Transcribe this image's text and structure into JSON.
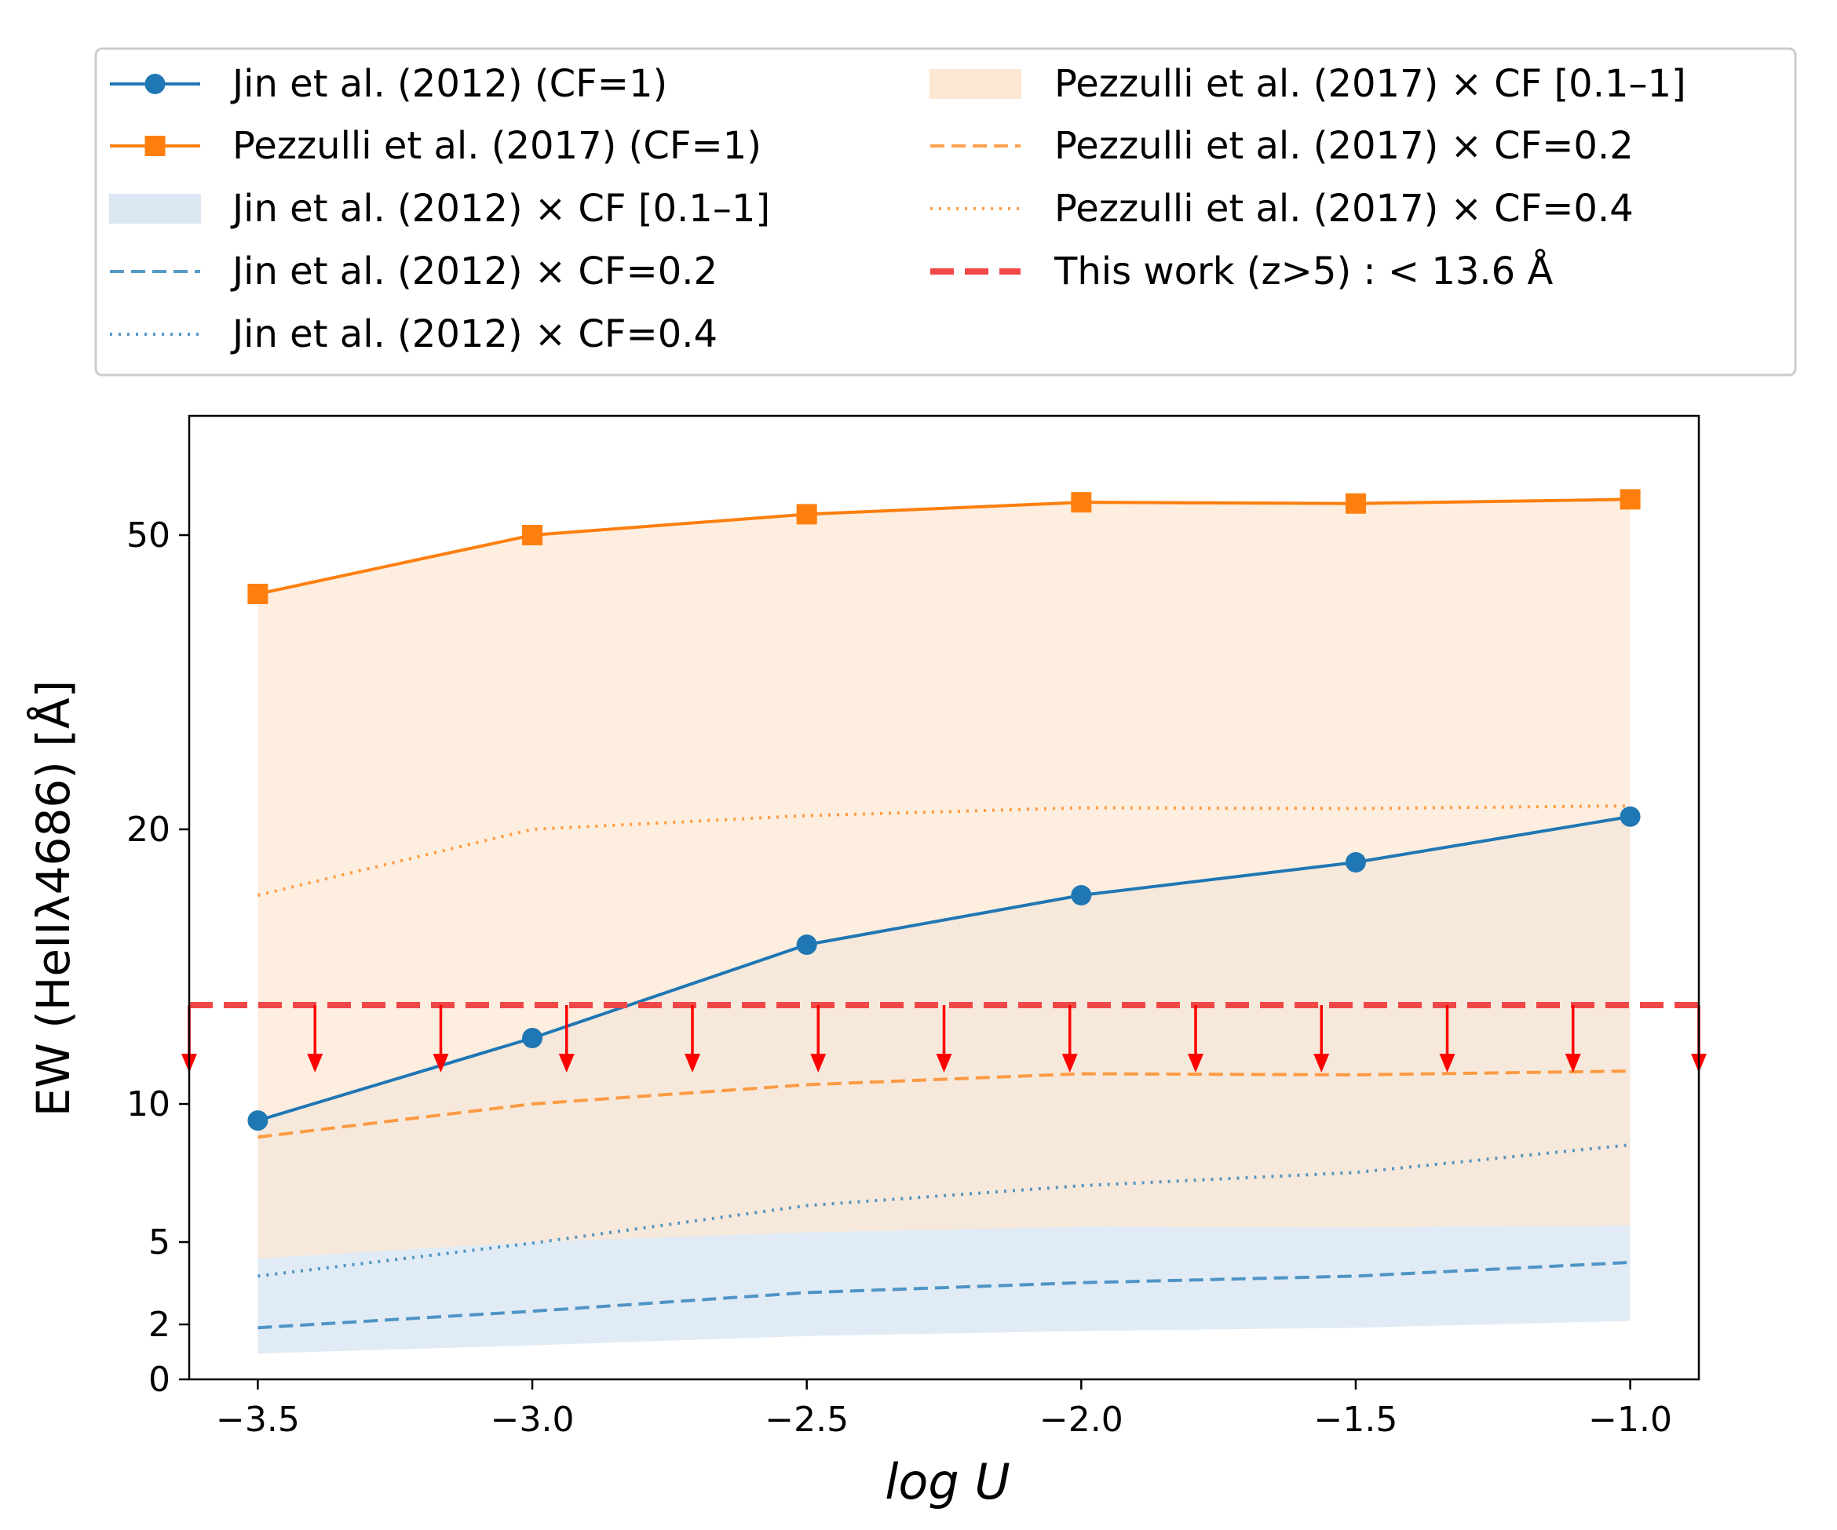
{
  "chart_data": {
    "type": "line",
    "xlabel": "log U",
    "ylabel": "EW (HeIIλ4686) [Å]",
    "xlim": [
      -3.625,
      -0.875
    ],
    "ylim": [
      0,
      70
    ],
    "x_ticks": [
      -3.5,
      -3.0,
      -2.5,
      -2.0,
      -1.5,
      -1.0
    ],
    "x_tick_labels": [
      "−3.5",
      "−3.0",
      "−2.5",
      "−2.0",
      "−1.5",
      "−1.0"
    ],
    "y_ticks": [
      0,
      2,
      5,
      10,
      20,
      50
    ],
    "y_tick_labels": [
      "0",
      "2",
      "5",
      "10",
      "20",
      "50"
    ],
    "x": [
      -3.5,
      -3.0,
      -2.5,
      -2.0,
      -1.5,
      -1.0
    ],
    "series": [
      {
        "key": "jin_cf1",
        "name": "Jin et al. (2012) (CF=1)",
        "style": "solid-marker-circle",
        "color": "#1f77b4",
        "values": [
          9.4,
          12.4,
          15.8,
          17.6,
          18.8,
          21.3
        ]
      },
      {
        "key": "pez_cf1",
        "name": "Pezzulli et al. (2017) (CF=1)",
        "style": "solid-marker-square",
        "color": "#ff7f0e",
        "values": [
          44,
          50,
          53.5,
          55.5,
          55.3,
          56
        ]
      },
      {
        "key": "jin_band",
        "name": "Jin et al. (2012) × CF [0.1–1]",
        "style": "band",
        "color": "#1f77b4",
        "base": "jin_cf1",
        "factor_range": [
          0.1,
          1
        ]
      },
      {
        "key": "jin_cf02",
        "name": "Jin et al. (2012) × CF=0.2",
        "style": "dashed",
        "color": "#1f77b4",
        "base": "jin_cf1",
        "factor": 0.2
      },
      {
        "key": "jin_cf04",
        "name": "Jin et al. (2012) × CF=0.4",
        "style": "dotted",
        "color": "#1f77b4",
        "base": "jin_cf1",
        "factor": 0.4
      },
      {
        "key": "pez_band",
        "name": "Pezzulli et al. (2017) × CF [0.1–1]",
        "style": "band",
        "color": "#ff7f0e",
        "base": "pez_cf1",
        "factor_range": [
          0.1,
          1
        ]
      },
      {
        "key": "pez_cf02",
        "name": "Pezzulli et al. (2017) × CF=0.2",
        "style": "dashed",
        "color": "#ff7f0e",
        "base": "pez_cf1",
        "factor": 0.2
      },
      {
        "key": "pez_cf04",
        "name": "Pezzulli et al. (2017) × CF=0.4",
        "style": "dotted",
        "color": "#ff7f0e",
        "base": "pez_cf1",
        "factor": 0.4
      },
      {
        "key": "limit",
        "name": "This work (z>5) : < 13.6 Å",
        "style": "upper-limit-dashed",
        "color": "#f04848",
        "value": 13.6
      }
    ],
    "legend_position": "top (above plot, two columns)"
  }
}
